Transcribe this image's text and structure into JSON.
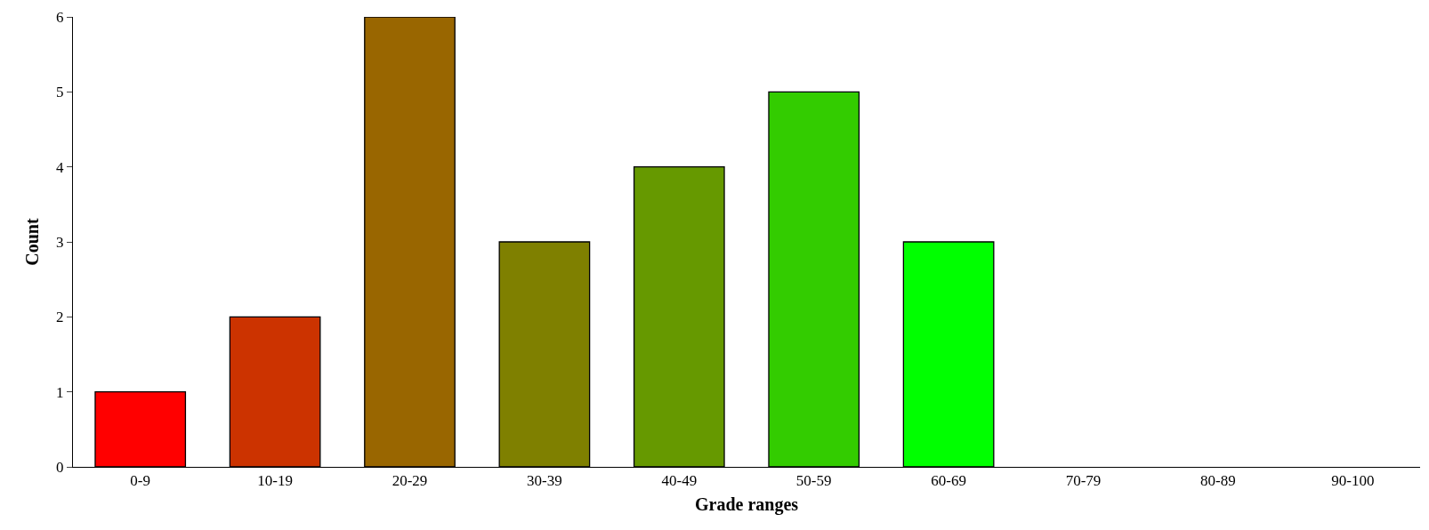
{
  "chart_data": {
    "type": "bar",
    "xlabel": "Grade ranges",
    "ylabel": "Count",
    "categories": [
      "0-9",
      "10-19",
      "20-29",
      "30-39",
      "40-49",
      "50-59",
      "60-69",
      "70-79",
      "80-89",
      "90-100"
    ],
    "values": [
      1,
      2,
      6,
      3,
      4,
      5,
      3,
      0,
      0,
      0
    ],
    "colors": [
      "#ff0000",
      "#cc3300",
      "#996600",
      "#7f8000",
      "#669900",
      "#33cc00",
      "#00ff00",
      null,
      null,
      null
    ],
    "ylim": [
      0,
      6
    ],
    "yticks": [
      0,
      1,
      2,
      3,
      4,
      5,
      6
    ]
  }
}
